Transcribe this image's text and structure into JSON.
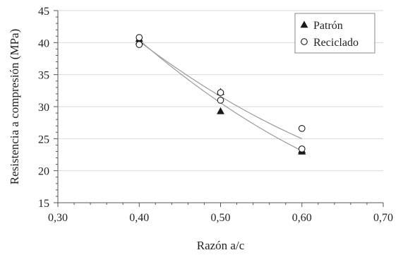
{
  "chart_data": {
    "type": "scatter",
    "title": "",
    "xlabel": "Razón a/c",
    "ylabel": "Resistencia a compresión (MPa)",
    "xlim": [
      0.3,
      0.7
    ],
    "ylim": [
      15,
      45
    ],
    "x_ticks": [
      0.3,
      0.4,
      0.5,
      0.6,
      0.7
    ],
    "x_tick_labels": [
      "0,30",
      "0,40",
      "0,50",
      "0,60",
      "0,70"
    ],
    "y_ticks": [
      15,
      20,
      25,
      30,
      35,
      40,
      45
    ],
    "y_tick_labels": [
      "15",
      "20",
      "25",
      "30",
      "35",
      "40",
      "45"
    ],
    "grid": "horizontal",
    "legend_position": "top-right",
    "series": [
      {
        "name": "Patrón",
        "marker": "filled-triangle",
        "color": "#1a1a1a",
        "points": [
          {
            "x": 0.4,
            "y": 40.6
          },
          {
            "x": 0.4,
            "y": 40.2
          },
          {
            "x": 0.5,
            "y": 32.3
          },
          {
            "x": 0.5,
            "y": 29.3
          },
          {
            "x": 0.6,
            "y": 23.2
          },
          {
            "x": 0.6,
            "y": 23.0
          }
        ],
        "trend": {
          "type": "quadratic",
          "x": [
            0.4,
            0.5,
            0.6
          ],
          "y": [
            40.4,
            30.6,
            23.1
          ]
        }
      },
      {
        "name": "Reciclado",
        "marker": "open-circle",
        "color": "#1a1a1a",
        "points": [
          {
            "x": 0.4,
            "y": 40.8
          },
          {
            "x": 0.4,
            "y": 39.7
          },
          {
            "x": 0.5,
            "y": 32.2
          },
          {
            "x": 0.5,
            "y": 31.0
          },
          {
            "x": 0.6,
            "y": 26.6
          },
          {
            "x": 0.6,
            "y": 23.4
          }
        ],
        "trend": {
          "type": "quadratic",
          "x": [
            0.4,
            0.5,
            0.6
          ],
          "y": [
            40.2,
            31.6,
            25.0
          ]
        }
      }
    ]
  }
}
